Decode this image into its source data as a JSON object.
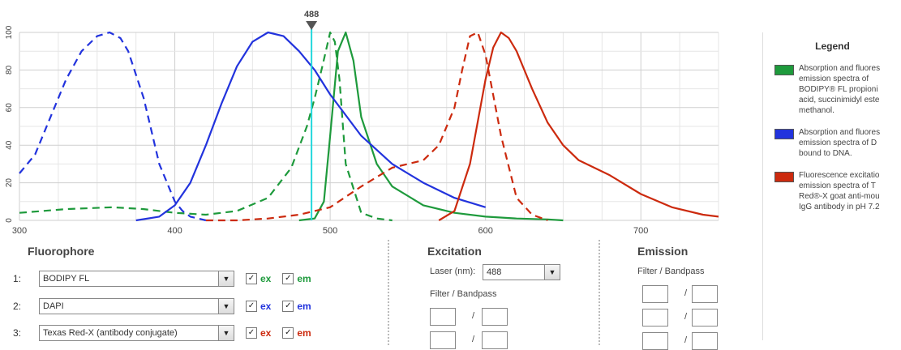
{
  "chart_data": {
    "type": "line",
    "xlim": [
      300,
      750
    ],
    "ylim": [
      0,
      100
    ],
    "x_ticks": [
      300,
      400,
      500,
      600,
      700
    ],
    "y_ticks": [
      0,
      20,
      40,
      60,
      80,
      100
    ],
    "grid": true,
    "marker": {
      "x": 488,
      "label": "488",
      "color": "#22d8dc"
    },
    "series": [
      {
        "name": "BODIPY FL ex",
        "color": "#1e9a3c",
        "dash": true,
        "x": [
          300,
          330,
          360,
          380,
          400,
          420,
          440,
          460,
          475,
          485,
          490,
          495,
          500,
          503,
          506,
          510,
          520,
          530,
          540
        ],
        "y": [
          4,
          6,
          7,
          6,
          4,
          3,
          5,
          12,
          28,
          50,
          65,
          82,
          100,
          95,
          75,
          30,
          4,
          1,
          0
        ]
      },
      {
        "name": "BODIPY FL em",
        "color": "#1e9a3c",
        "dash": false,
        "x": [
          480,
          490,
          496,
          500,
          505,
          510,
          515,
          520,
          530,
          540,
          560,
          580,
          600,
          620,
          640,
          650
        ],
        "y": [
          0,
          1,
          10,
          45,
          90,
          100,
          85,
          55,
          30,
          18,
          8,
          4,
          2,
          1,
          0.5,
          0
        ]
      },
      {
        "name": "DAPI ex",
        "color": "#2233dd",
        "dash": true,
        "x": [
          300,
          310,
          320,
          330,
          340,
          350,
          358,
          365,
          370,
          380,
          390,
          400,
          405,
          410,
          420
        ],
        "y": [
          25,
          35,
          55,
          75,
          90,
          98,
          100,
          97,
          90,
          65,
          30,
          10,
          5,
          2,
          0
        ]
      },
      {
        "name": "DAPI em",
        "color": "#2233dd",
        "dash": false,
        "x": [
          375,
          390,
          400,
          410,
          420,
          430,
          440,
          450,
          460,
          470,
          480,
          490,
          500,
          520,
          540,
          560,
          580,
          600
        ],
        "y": [
          0,
          2,
          8,
          20,
          40,
          62,
          82,
          95,
          100,
          98,
          90,
          80,
          67,
          45,
          30,
          20,
          12,
          7
        ]
      },
      {
        "name": "Texas Red-X ex",
        "color": "#cc2a0e",
        "dash": true,
        "x": [
          420,
          440,
          460,
          480,
          500,
          520,
          540,
          550,
          560,
          570,
          580,
          585,
          590,
          595,
          600,
          610,
          620,
          630,
          640
        ],
        "y": [
          0,
          0,
          1,
          3,
          7,
          18,
          28,
          30,
          32,
          40,
          60,
          80,
          98,
          100,
          88,
          45,
          12,
          3,
          0
        ]
      },
      {
        "name": "Texas Red-X em",
        "color": "#cc2a0e",
        "dash": false,
        "x": [
          570,
          580,
          590,
          600,
          605,
          610,
          615,
          620,
          630,
          640,
          650,
          660,
          680,
          700,
          720,
          740,
          750
        ],
        "y": [
          0,
          5,
          30,
          75,
          92,
          100,
          97,
          90,
          70,
          52,
          40,
          32,
          24,
          14,
          7,
          3,
          2
        ]
      }
    ]
  },
  "legend": {
    "title": "Legend",
    "items": [
      {
        "color": "#1e9a3c",
        "text": "Absorption and fluores\nemission spectra of\nBODIPY® FL propioni\nacid, succinimidyl este\nmethanol."
      },
      {
        "color": "#2233dd",
        "text": "Absorption and fluores\nemission spectra of D\nbound to DNA."
      },
      {
        "color": "#cc2a0e",
        "text": "Fluorescence excitatio\nemission spectra of T\nRed®-X goat anti-mou\nIgG antibody in pH 7.2"
      }
    ]
  },
  "fluorophore": {
    "title": "Fluorophore",
    "rows": [
      {
        "num": "1:",
        "name": "BODIPY FL",
        "ex": "ex",
        "em": "em",
        "color": "#1e9a3c"
      },
      {
        "num": "2:",
        "name": "DAPI",
        "ex": "ex",
        "em": "em",
        "color": "#2233dd"
      },
      {
        "num": "3:",
        "name": "Texas Red-X (antibody conjugate)",
        "ex": "ex",
        "em": "em",
        "color": "#cc2a0e"
      }
    ]
  },
  "excitation": {
    "title": "Excitation",
    "laser_label": "Laser (nm):",
    "laser_value": "488",
    "filter_label": "Filter / Bandpass"
  },
  "emission": {
    "title": "Emission",
    "filter_label": "Filter / Bandpass"
  },
  "icons": {
    "dropdown": "▼",
    "check": "✓",
    "slash": "/"
  }
}
